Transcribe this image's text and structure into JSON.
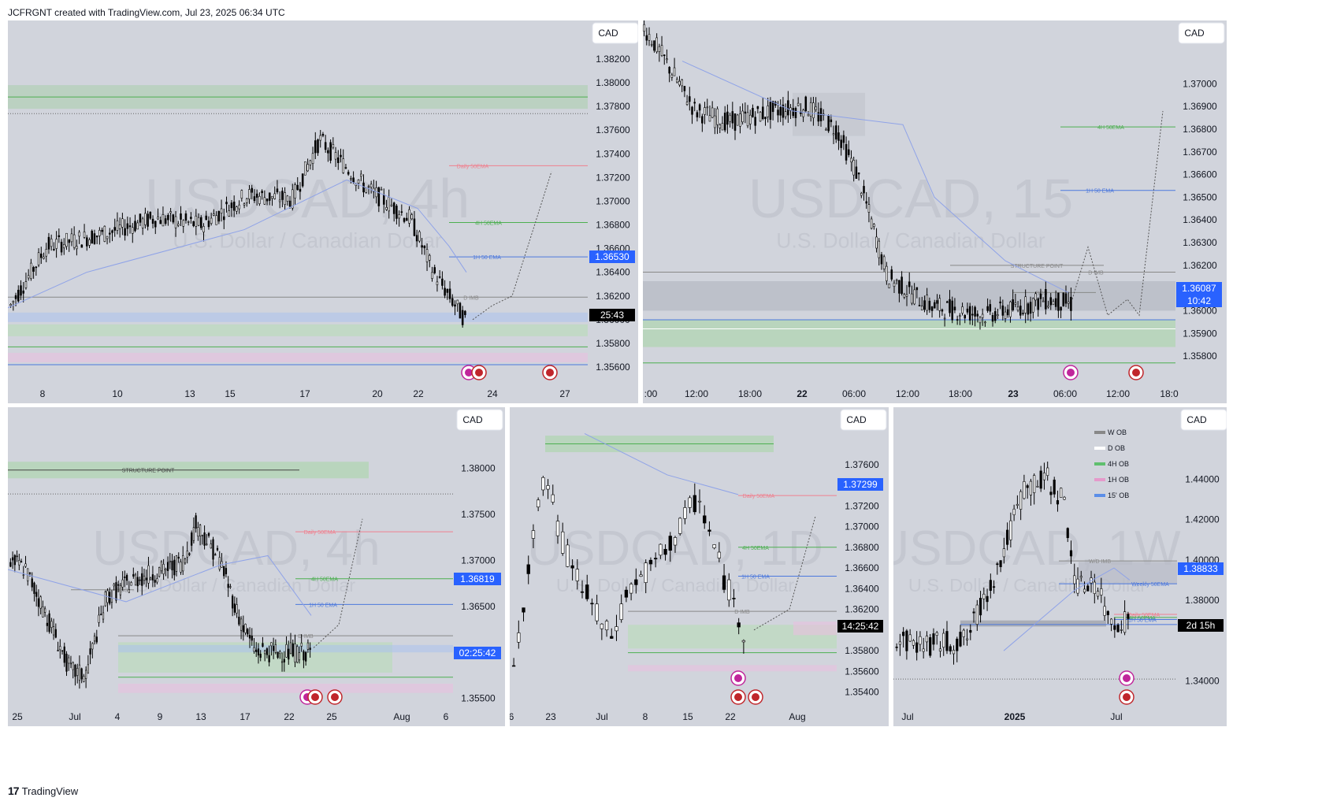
{
  "header": {
    "attribution": "JCFRGNT created with TradingView.com, Jul 23, 2025 06:34 UTC"
  },
  "footer": {
    "brand": "TradingView"
  },
  "colors": {
    "price_tag": "#2962ff",
    "timer_tag": "#000000",
    "bg": "#d1d4dc"
  },
  "chart_data": [
    {
      "id": "p1",
      "type": "candlestick",
      "watermark_symbol": "USDCAD, 4h",
      "watermark_name": "U.S. Dollar / Canadian Dollar",
      "currency": "CAD",
      "y_ticks": [
        "1.38200",
        "1.38000",
        "1.37800",
        "1.37600",
        "1.37400",
        "1.37200",
        "1.37000",
        "1.36800",
        "1.36600",
        "1.36400",
        "1.36200",
        "1.36000",
        "1.35800",
        "1.35600"
      ],
      "x_ticks": [
        "8",
        "10",
        "13",
        "15",
        "17",
        "20",
        "22",
        "24",
        "27"
      ],
      "price_label": "1.36530",
      "timer_label": "25:43",
      "annotations": [
        "Daily 50EMA",
        "4H 50EMA",
        "1H 50 EMA",
        "D IMB"
      ],
      "ylim": [
        1.3552,
        1.3826
      ],
      "levels": {
        "daily_50ema": 1.373,
        "4h_50ema": 1.3682,
        "1h_50ema": 1.3653,
        "d_imb": 1.3619,
        "top_zone": [
          1.3778,
          1.3798
        ]
      }
    },
    {
      "id": "p2",
      "type": "candlestick",
      "watermark_symbol": "USDCAD, 15",
      "watermark_name": "U.S. Dollar / Canadian Dollar",
      "currency": "CAD",
      "y_ticks": [
        "1.37000",
        "1.36900",
        "1.36800",
        "1.36700",
        "1.36600",
        "1.36500",
        "1.36400",
        "1.36300",
        "1.36200",
        "1.36000",
        "1.35900",
        "1.35800"
      ],
      "x_ticks": [
        ":00",
        "12:00",
        "18:00",
        "22",
        "06:00",
        "12:00",
        "18:00",
        "23",
        "06:00",
        "12:00",
        "18:0"
      ],
      "price_label": "1.36087",
      "timer_label": "10:42",
      "annotations": [
        "4H 50EMA",
        "1H 50 EMA",
        "STRUCTURE POINT",
        "D IMB",
        "BOS"
      ],
      "ylim": [
        1.3571,
        1.3714
      ],
      "levels": {
        "4h_50ema": 1.3681,
        "1h_50ema": 1.3653,
        "structure_point": 1.362,
        "d_imb": 1.3617
      }
    },
    {
      "id": "p3",
      "type": "candlestick",
      "watermark_symbol": "USDCAD, 4h",
      "watermark_name": "U.S. Dollar / Canadian Dollar",
      "currency": "CAD",
      "y_ticks": [
        "1.38000",
        "1.37500",
        "1.37000",
        "1.36500",
        "1.35500"
      ],
      "x_ticks": [
        "25",
        "Jul",
        "4",
        "9",
        "13",
        "17",
        "22",
        "25",
        "Aug",
        "6"
      ],
      "price_label": "1.36819",
      "timer_label": "02:25:42",
      "annotations": [
        "STRUCTURE POINT",
        "Daily 50EMA",
        "4H 50EMA",
        "1H 50 EMA",
        "BOS",
        "D IMB"
      ],
      "ylim": [
        1.3548,
        1.3832
      ]
    },
    {
      "id": "p4",
      "type": "candlestick",
      "watermark_symbol": "USDCAD, 1D",
      "watermark_name": "U.S. Dollar / Canadian Dollar",
      "currency": "CAD",
      "y_ticks": [
        "1.37600",
        "1.37400",
        "1.37200",
        "1.37000",
        "1.36800",
        "1.36600",
        "1.36400",
        "1.36200",
        "1.35800",
        "1.35600",
        "1.35400"
      ],
      "x_ticks": [
        "6",
        "23",
        "Jul",
        "8",
        "15",
        "22",
        "Aug"
      ],
      "price_label": "1.37299",
      "timer_label": "14:25:42",
      "annotations": [
        "Daily 50EMA",
        "4H 50EMA",
        "1H 50 EMA",
        "D IMB"
      ],
      "ylim": [
        1.3532,
        1.3785
      ]
    },
    {
      "id": "p5",
      "type": "candlestick",
      "watermark_symbol": "USDCAD, 1W",
      "watermark_name": "U.S. Dollar / Canadian Dollar",
      "currency": "CAD",
      "y_ticks": [
        "1.44000",
        "1.42000",
        "1.40000",
        "1.38000",
        "1.34000"
      ],
      "x_ticks": [
        "Jul",
        "2025",
        "Jul"
      ],
      "price_label": "1.38833",
      "timer_label": "2d 15h",
      "annotations": [
        "W/D IMB",
        "Weekly 50EMA",
        "Daily 50EMA",
        "4H 50EMA",
        "1H 50 EMA"
      ],
      "legend": [
        "W OB",
        "D OB",
        "4H OB",
        "1H OB",
        "15' OB"
      ],
      "ylim": [
        1.3305,
        1.46
      ]
    }
  ]
}
